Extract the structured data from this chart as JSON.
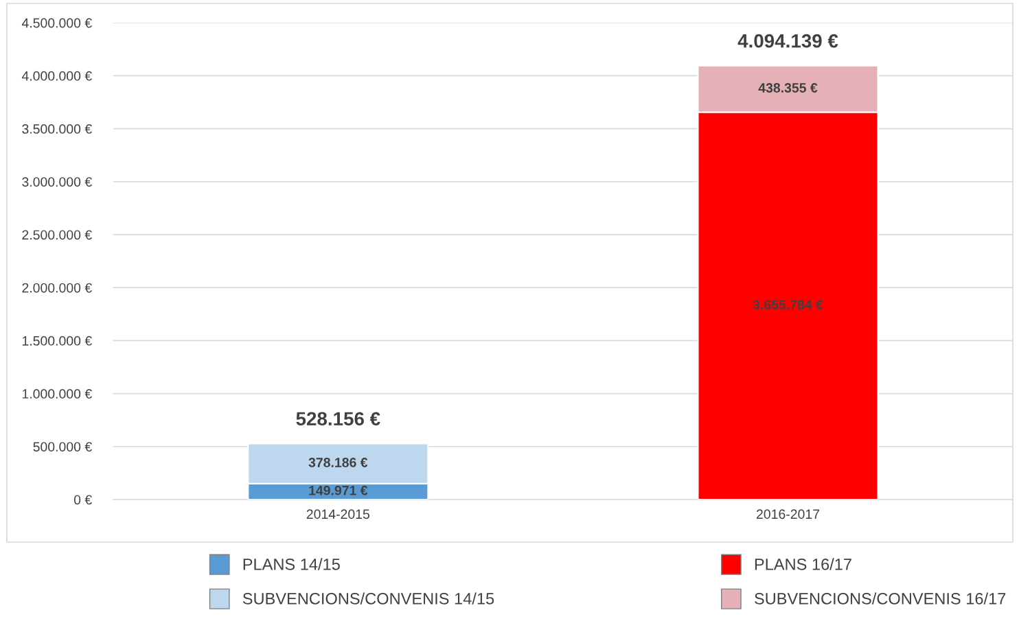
{
  "chart_data": {
    "type": "bar",
    "stacked": true,
    "categories": [
      "2014-2015",
      "2016-2017"
    ],
    "series": [
      {
        "name": "PLANS 14/15",
        "color": "#5b9bd5",
        "values": [
          149971,
          null
        ],
        "value_labels": [
          "149.971 €",
          null
        ]
      },
      {
        "name": "SUBVENCIONS/CONVENIS 14/15",
        "color": "#bdd7ee",
        "values": [
          378186,
          null
        ],
        "value_labels": [
          "378.186 €",
          null
        ]
      },
      {
        "name": "PLANS 16/17",
        "color": "#ff0000",
        "values": [
          null,
          3655784
        ],
        "value_labels": [
          null,
          "3.655.784 €"
        ]
      },
      {
        "name": "SUBVENCIONS/CONVENIS 16/17",
        "color": "#e6b0b8",
        "values": [
          null,
          438355
        ],
        "value_labels": [
          null,
          "438.355 €"
        ]
      }
    ],
    "totals": [
      "528.156 €",
      "4.094.139 €"
    ],
    "ylim": [
      0,
      4500000
    ],
    "yticks": [
      {
        "value": 0,
        "label": "0 €"
      },
      {
        "value": 500000,
        "label": "500.000 €"
      },
      {
        "value": 1000000,
        "label": "1.000.000 €"
      },
      {
        "value": 1500000,
        "label": "1.500.000 €"
      },
      {
        "value": 2000000,
        "label": "2.000.000 €"
      },
      {
        "value": 2500000,
        "label": "2.500.000 €"
      },
      {
        "value": 3000000,
        "label": "3.000.000 €"
      },
      {
        "value": 3500000,
        "label": "3.500.000 €"
      },
      {
        "value": 4000000,
        "label": "4.000.000 €"
      },
      {
        "value": 4500000,
        "label": "4.500.000 €"
      }
    ],
    "grid": "y",
    "legend": "bottom"
  }
}
